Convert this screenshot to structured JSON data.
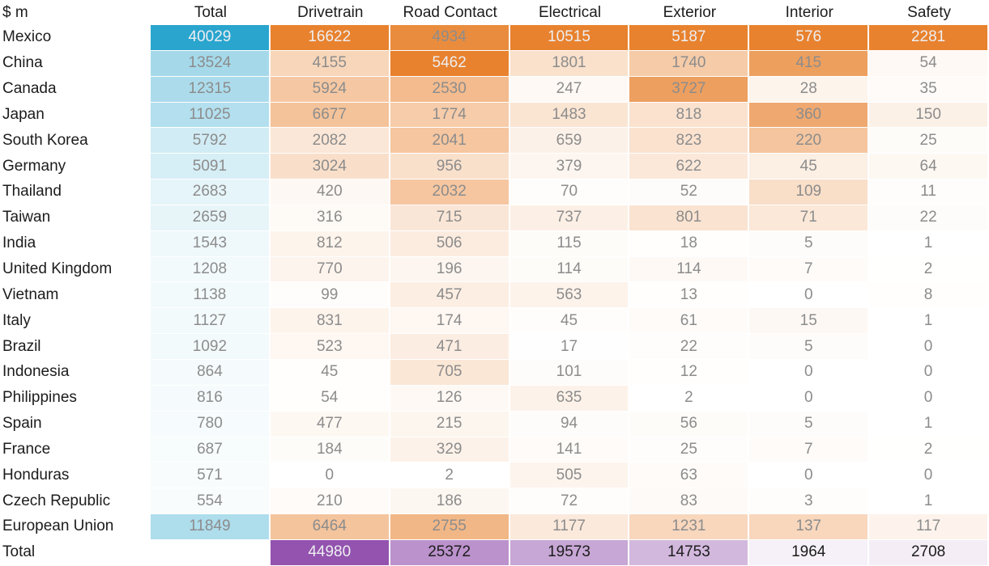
{
  "title": "$ m",
  "colors": {
    "total_column_max": "#29A5CE",
    "category_cell_max": "#E8822E",
    "total_row_max": "#9353AE",
    "value_text": "#8C8C8C",
    "label_text": "#1C1C1C",
    "light_text": "#EEEEF2",
    "cell_gap": "#FFFFFF"
  },
  "chart_data": {
    "type": "heatmap",
    "unit": "$ m",
    "columns": [
      "Total",
      "Drivetrain",
      "Road Contact",
      "Electrical",
      "Exterior",
      "Interior",
      "Safety"
    ],
    "rows": [
      {
        "label": "Mexico",
        "values": [
          40029,
          16622,
          4934,
          10515,
          5187,
          576,
          2281
        ]
      },
      {
        "label": "China",
        "values": [
          13524,
          4155,
          5462,
          1801,
          1740,
          415,
          54
        ]
      },
      {
        "label": "Canada",
        "values": [
          12315,
          5924,
          2530,
          247,
          3727,
          28,
          35
        ]
      },
      {
        "label": "Japan",
        "values": [
          11025,
          6677,
          1774,
          1483,
          818,
          360,
          150
        ]
      },
      {
        "label": "South Korea",
        "values": [
          5792,
          2082,
          2041,
          659,
          823,
          220,
          25
        ]
      },
      {
        "label": "Germany",
        "values": [
          5091,
          3024,
          956,
          379,
          622,
          45,
          64
        ]
      },
      {
        "label": "Thailand",
        "values": [
          2683,
          420,
          2032,
          70,
          52,
          109,
          11
        ]
      },
      {
        "label": "Taiwan",
        "values": [
          2659,
          316,
          715,
          737,
          801,
          71,
          22
        ]
      },
      {
        "label": "India",
        "values": [
          1543,
          812,
          506,
          115,
          18,
          5,
          1
        ]
      },
      {
        "label": "United Kingdom",
        "values": [
          1208,
          770,
          196,
          114,
          114,
          7,
          2
        ]
      },
      {
        "label": "Vietnam",
        "values": [
          1138,
          99,
          457,
          563,
          13,
          0,
          8
        ]
      },
      {
        "label": "Italy",
        "values": [
          1127,
          831,
          174,
          45,
          61,
          15,
          1
        ]
      },
      {
        "label": "Brazil",
        "values": [
          1092,
          523,
          471,
          17,
          22,
          5,
          0
        ]
      },
      {
        "label": "Indonesia",
        "values": [
          864,
          45,
          705,
          101,
          12,
          0,
          0
        ]
      },
      {
        "label": "Philippines",
        "values": [
          816,
          54,
          126,
          635,
          2,
          0,
          0
        ]
      },
      {
        "label": "Spain",
        "values": [
          780,
          477,
          215,
          94,
          56,
          5,
          1
        ]
      },
      {
        "label": "France",
        "values": [
          687,
          184,
          329,
          141,
          25,
          7,
          2
        ]
      },
      {
        "label": "Honduras",
        "values": [
          571,
          0,
          2,
          505,
          63,
          0,
          0
        ]
      },
      {
        "label": "Czech Republic",
        "values": [
          554,
          210,
          186,
          72,
          83,
          3,
          1
        ]
      },
      {
        "label": "European Union",
        "values": [
          11849,
          6464,
          2755,
          1177,
          1231,
          137,
          117
        ]
      }
    ],
    "total_row": {
      "label": "Total",
      "values": [
        null,
        44980,
        25372,
        19573,
        14753,
        1964,
        2708
      ]
    },
    "layout_hints": {
      "shade_rule": "cell shade proportional to (value / column max)^0.8; Total column uses blue scale, category columns use orange scale, bottom Total row uses purple scale",
      "max_cells_use_light_text": true
    }
  }
}
